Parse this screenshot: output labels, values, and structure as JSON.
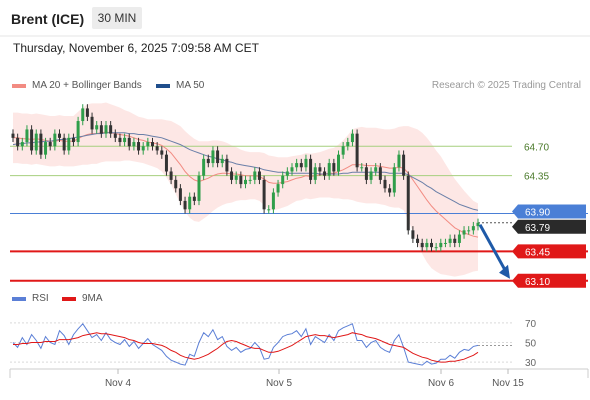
{
  "header": {
    "instrument": "Brent (ICE)",
    "timeframe": "30 MIN",
    "datetime": "Thursday, November 6, 2025 7:09:58 AM CET"
  },
  "legend": {
    "bb": "MA 20 + Bollinger Bands",
    "ma50": "MA 50",
    "credit": "Research © 2025 Trading Central",
    "rsi": "RSI",
    "ma9": "9MA"
  },
  "colors": {
    "bb": "#f28b82",
    "ma50": "#1f4e8c",
    "rsi": "#5b7fd6",
    "ma9": "#e01818",
    "resistance": "#a6cf7e",
    "pivot": "#4a7fd6",
    "support": "#e01818",
    "current": "#2a2a2a",
    "arrow": "#1f5aa8"
  },
  "chart_data": [
    {
      "type": "candlestick",
      "title": "",
      "x_ticks": [
        "Nov 4",
        "Nov 5",
        "Nov 6",
        "Nov 15"
      ],
      "price_levels": [
        {
          "label": "64.70",
          "value": 64.7,
          "kind": "resistance"
        },
        {
          "label": "64.35",
          "value": 64.35,
          "kind": "resistance"
        },
        {
          "label": "63.90",
          "value": 63.9,
          "kind": "pivot"
        },
        {
          "label": "63.79",
          "value": 63.79,
          "kind": "current"
        },
        {
          "label": "63.45",
          "value": 63.45,
          "kind": "support"
        },
        {
          "label": "63.10",
          "value": 63.1,
          "kind": "support"
        }
      ],
      "ylim": [
        63.05,
        65.25
      ],
      "close": [
        64.8,
        64.7,
        64.75,
        64.9,
        64.65,
        64.85,
        64.6,
        64.75,
        64.7,
        64.85,
        64.8,
        64.65,
        64.8,
        64.75,
        65.0,
        65.15,
        65.05,
        64.9,
        64.95,
        64.85,
        64.95,
        64.85,
        64.8,
        64.75,
        64.8,
        64.7,
        64.75,
        64.65,
        64.7,
        64.75,
        64.7,
        64.65,
        64.6,
        64.4,
        64.3,
        64.2,
        64.05,
        63.95,
        64.1,
        64.05,
        64.35,
        64.55,
        64.5,
        64.65,
        64.5,
        64.55,
        64.4,
        64.3,
        64.35,
        64.25,
        64.3,
        64.3,
        64.4,
        64.3,
        63.95,
        63.95,
        64.15,
        64.25,
        64.35,
        64.4,
        64.45,
        64.5,
        64.45,
        64.55,
        64.3,
        64.45,
        64.4,
        64.35,
        64.5,
        64.4,
        64.6,
        64.7,
        64.75,
        64.85,
        64.45,
        64.45,
        64.3,
        64.4,
        64.45,
        64.3,
        64.2,
        64.15,
        64.45,
        64.6,
        64.35,
        63.7,
        63.6,
        63.55,
        63.5,
        63.55,
        63.5,
        63.5,
        63.55,
        63.55,
        63.6,
        63.55,
        63.65,
        63.7,
        63.7,
        63.75,
        63.79
      ],
      "ma20": [
        64.8,
        64.8,
        64.79,
        64.79,
        64.78,
        64.79,
        64.78,
        64.77,
        64.76,
        64.76,
        64.77,
        64.76,
        64.76,
        64.76,
        64.79,
        64.82,
        64.84,
        64.85,
        64.85,
        64.86,
        64.87,
        64.86,
        64.85,
        64.84,
        64.83,
        64.82,
        64.8,
        64.78,
        64.77,
        64.75,
        64.74,
        64.73,
        64.71,
        64.67,
        64.62,
        64.55,
        64.48,
        64.4,
        64.34,
        64.3,
        64.28,
        64.3,
        64.32,
        64.35,
        64.37,
        64.38,
        64.38,
        64.37,
        64.37,
        64.36,
        64.35,
        64.35,
        64.35,
        64.34,
        64.31,
        64.27,
        64.26,
        64.26,
        64.27,
        64.28,
        64.3,
        64.32,
        64.33,
        64.35,
        64.34,
        64.35,
        64.36,
        64.37,
        64.38,
        64.38,
        64.4,
        64.42,
        64.45,
        64.48,
        64.48,
        64.48,
        64.47,
        64.47,
        64.47,
        64.46,
        64.45,
        64.44,
        64.44,
        64.45,
        64.44,
        64.38,
        64.3,
        64.22,
        64.14,
        64.06,
        63.99,
        63.93,
        63.88,
        63.83,
        63.78,
        63.73,
        63.7,
        63.67,
        63.65,
        63.63,
        63.62
      ],
      "ma50": [
        64.72,
        64.73,
        64.73,
        64.74,
        64.74,
        64.75,
        64.75,
        64.76,
        64.76,
        64.77,
        64.78,
        64.78,
        64.79,
        64.8,
        64.81,
        64.82,
        64.83,
        64.84,
        64.85,
        64.85,
        64.86,
        64.86,
        64.86,
        64.86,
        64.86,
        64.85,
        64.85,
        64.84,
        64.84,
        64.83,
        64.82,
        64.81,
        64.8,
        64.78,
        64.76,
        64.74,
        64.72,
        64.69,
        64.66,
        64.64,
        64.62,
        64.6,
        64.58,
        64.57,
        64.55,
        64.54,
        64.52,
        64.51,
        64.49,
        64.48,
        64.47,
        64.46,
        64.45,
        64.44,
        64.42,
        64.41,
        64.4,
        64.39,
        64.39,
        64.38,
        64.38,
        64.38,
        64.38,
        64.38,
        64.38,
        64.38,
        64.37,
        64.37,
        64.37,
        64.37,
        64.37,
        64.38,
        64.38,
        64.39,
        64.39,
        64.39,
        64.39,
        64.39,
        64.39,
        64.39,
        64.39,
        64.38,
        64.38,
        64.38,
        64.38,
        64.36,
        64.33,
        64.3,
        64.27,
        64.23,
        64.2,
        64.16,
        64.13,
        64.1,
        64.07,
        64.04,
        64.01,
        63.99,
        63.97,
        63.95,
        63.94
      ],
      "bb_width": [
        0.3,
        0.3,
        0.3,
        0.3,
        0.3,
        0.3,
        0.3,
        0.3,
        0.3,
        0.3,
        0.3,
        0.3,
        0.3,
        0.3,
        0.32,
        0.34,
        0.36,
        0.36,
        0.36,
        0.35,
        0.35,
        0.34,
        0.33,
        0.32,
        0.3,
        0.29,
        0.28,
        0.27,
        0.27,
        0.27,
        0.28,
        0.29,
        0.31,
        0.34,
        0.38,
        0.42,
        0.46,
        0.48,
        0.49,
        0.49,
        0.48,
        0.46,
        0.44,
        0.42,
        0.4,
        0.38,
        0.36,
        0.34,
        0.32,
        0.3,
        0.29,
        0.28,
        0.28,
        0.29,
        0.31,
        0.32,
        0.32,
        0.31,
        0.3,
        0.29,
        0.28,
        0.27,
        0.27,
        0.27,
        0.27,
        0.27,
        0.27,
        0.28,
        0.29,
        0.3,
        0.32,
        0.35,
        0.38,
        0.42,
        0.44,
        0.45,
        0.45,
        0.45,
        0.45,
        0.45,
        0.45,
        0.46,
        0.47,
        0.48,
        0.5,
        0.56,
        0.62,
        0.68,
        0.72,
        0.74,
        0.74,
        0.72,
        0.7,
        0.66,
        0.62,
        0.58,
        0.54,
        0.5,
        0.46,
        0.42,
        0.4
      ]
    },
    {
      "type": "line",
      "title": "",
      "y_ticks": [
        70,
        50,
        30
      ],
      "ylim": [
        22,
        78
      ],
      "series": [
        {
          "name": "RSI",
          "values": [
            50,
            45,
            55,
            48,
            58,
            52,
            44,
            56,
            50,
            48,
            62,
            57,
            48,
            58,
            64,
            69,
            62,
            55,
            58,
            52,
            60,
            53,
            50,
            48,
            53,
            46,
            51,
            44,
            49,
            54,
            48,
            45,
            42,
            36,
            32,
            30,
            28,
            27,
            38,
            36,
            50,
            60,
            56,
            63,
            53,
            56,
            46,
            42,
            45,
            40,
            43,
            44,
            50,
            45,
            33,
            34,
            45,
            50,
            56,
            58,
            59,
            62,
            56,
            64,
            48,
            56,
            53,
            50,
            58,
            52,
            62,
            65,
            67,
            69,
            52,
            52,
            45,
            50,
            52,
            45,
            42,
            40,
            52,
            58,
            45,
            30,
            29,
            28,
            27,
            31,
            28,
            29,
            33,
            33,
            37,
            34,
            40,
            43,
            42,
            46,
            47
          ]
        },
        {
          "name": "9MA",
          "values": [
            48,
            48,
            49,
            49,
            50,
            50,
            50,
            51,
            51,
            51,
            53,
            53,
            53,
            54,
            55,
            57,
            58,
            59,
            60,
            59,
            59,
            58,
            57,
            56,
            55,
            53,
            52,
            50,
            49,
            49,
            49,
            48,
            47,
            45,
            42,
            40,
            37,
            35,
            34,
            33,
            34,
            36,
            38,
            41,
            44,
            48,
            51,
            52,
            51,
            49,
            47,
            45,
            44,
            44,
            42,
            40,
            40,
            41,
            43,
            45,
            47,
            50,
            53,
            56,
            57,
            58,
            57,
            57,
            56,
            55,
            56,
            57,
            58,
            60,
            59,
            58,
            56,
            55,
            54,
            52,
            50,
            48,
            47,
            46,
            45,
            42,
            39,
            37,
            35,
            34,
            32,
            31,
            30,
            30,
            31,
            31,
            32,
            33,
            35,
            37,
            40
          ]
        }
      ]
    }
  ]
}
